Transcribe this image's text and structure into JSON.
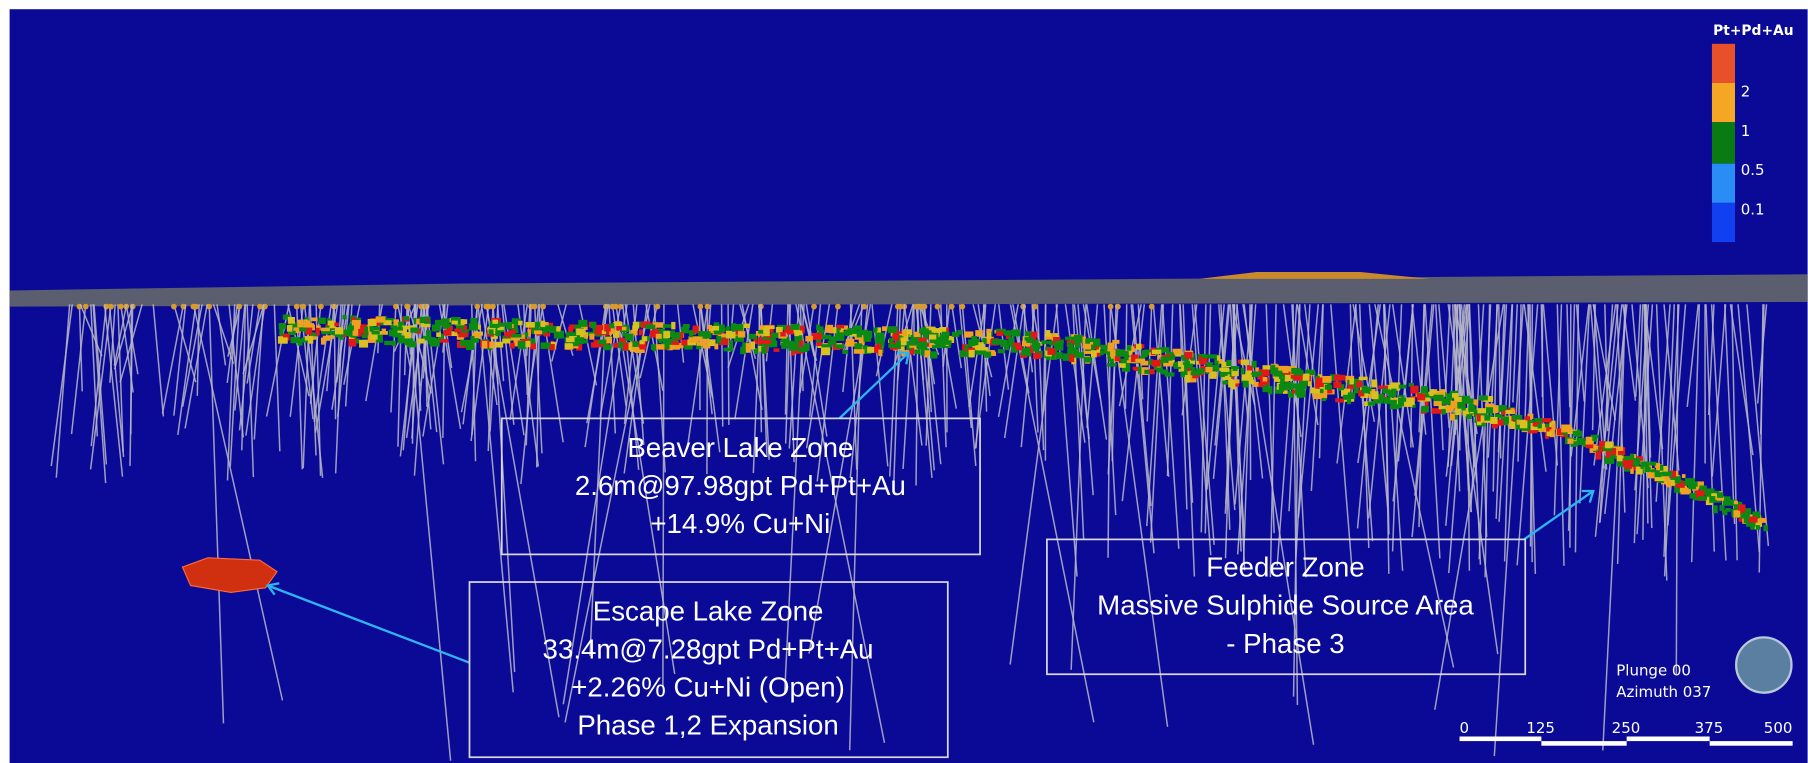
{
  "legend": {
    "title": "Pt+Pd+Au",
    "labels": [
      "2",
      "1",
      "0.5",
      "0.1"
    ]
  },
  "callouts": [
    {
      "lines": [
        "Beaver Lake Zone",
        "2.6m@97.98gpt Pd+Pt+Au",
        "+14.9% Cu+Ni"
      ]
    },
    {
      "lines": [
        "Escape Lake Zone",
        "33.4m@7.28gpt Pd+Pt+Au",
        "+2.26% Cu+Ni  (Open)",
        "Phase 1,2 Expansion"
      ]
    },
    {
      "lines": [
        "Feeder Zone",
        "Massive Sulphide Source Area",
        "- Phase 3"
      ]
    }
  ],
  "view": {
    "plunge": "Plunge 00",
    "azimuth": "Azimuth 037"
  },
  "scale_bar": {
    "labels": [
      "0",
      "125",
      "250",
      "375",
      "500"
    ]
  }
}
